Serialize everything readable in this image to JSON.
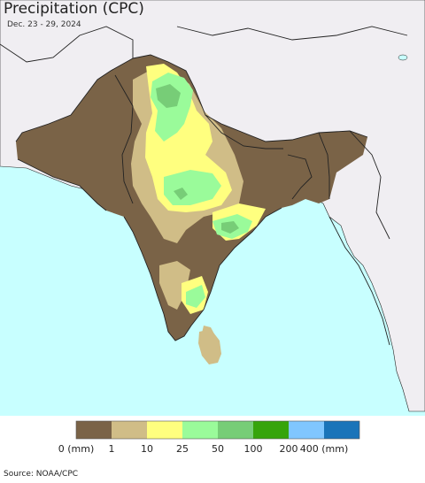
{
  "title": "Precipitation (CPC)",
  "subtitle": "Dec. 23 - 29, 2024",
  "source": "Source: NOAA/CPC",
  "legend": {
    "ticks": [
      "0 (mm)",
      "1",
      "10",
      "25",
      "50",
      "100",
      "200",
      "400 (mm)"
    ],
    "colors": [
      "#7a6347",
      "#d0bd87",
      "#ffff7f",
      "#9afb9a",
      "#77cd77",
      "#36a40b",
      "#80c6ff",
      "#1a74b9"
    ]
  },
  "colors": {
    "ocean": "#c8ffff",
    "land_outside": "#f0eef2",
    "border": "#222222",
    "dry": "#7a6347",
    "light": "#d0bd87",
    "yellow": "#ffff7f",
    "lightgreen": "#9afb9a",
    "green": "#77cd77"
  }
}
